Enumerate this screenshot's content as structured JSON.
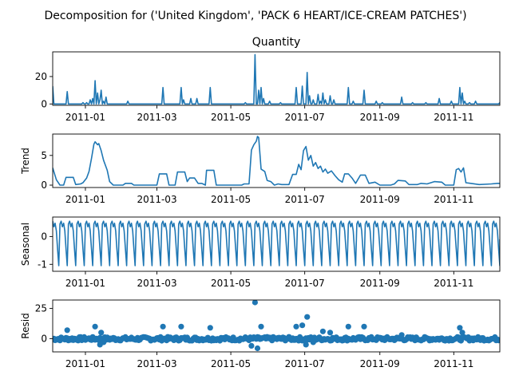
{
  "figure": {
    "suptitle": "Decomposition for ('United Kingdom', 'PACK 6 HEART/ICE-CREAM PATCHES')"
  },
  "chart_data": [
    {
      "type": "line",
      "title": "Quantity",
      "ylabel": "",
      "ylim": [
        -1,
        38
      ],
      "yticks": [
        0,
        20
      ],
      "xlim": [
        "2010-12-05",
        "2011-12-09"
      ],
      "xticks": [
        "2011-01",
        "2011-03",
        "2011-05",
        "2011-07",
        "2011-09",
        "2011-11"
      ],
      "baseline": 0,
      "spikes": [
        {
          "x": "2010-12-05",
          "y": 13
        },
        {
          "x": "2010-12-17",
          "y": 9
        },
        {
          "x": "2010-12-30",
          "y": 1
        },
        {
          "x": "2011-01-02",
          "y": 1
        },
        {
          "x": "2011-01-05",
          "y": 3
        },
        {
          "x": "2011-01-07",
          "y": 4
        },
        {
          "x": "2011-01-09",
          "y": 17
        },
        {
          "x": "2011-01-11",
          "y": 8
        },
        {
          "x": "2011-01-13",
          "y": 3
        },
        {
          "x": "2011-01-14",
          "y": 10
        },
        {
          "x": "2011-01-16",
          "y": 2
        },
        {
          "x": "2011-01-18",
          "y": 5
        },
        {
          "x": "2011-02-05",
          "y": 2
        },
        {
          "x": "2011-03-06",
          "y": 12
        },
        {
          "x": "2011-03-21",
          "y": 12
        },
        {
          "x": "2011-03-23",
          "y": 3
        },
        {
          "x": "2011-03-29",
          "y": 4
        },
        {
          "x": "2011-04-03",
          "y": 4
        },
        {
          "x": "2011-04-14",
          "y": 12
        },
        {
          "x": "2011-05-13",
          "y": 1
        },
        {
          "x": "2011-05-21",
          "y": 36
        },
        {
          "x": "2011-05-24",
          "y": 10
        },
        {
          "x": "2011-05-26",
          "y": 12
        },
        {
          "x": "2011-05-28",
          "y": 4
        },
        {
          "x": "2011-06-02",
          "y": 2
        },
        {
          "x": "2011-06-11",
          "y": 1
        },
        {
          "x": "2011-06-24",
          "y": 12
        },
        {
          "x": "2011-06-29",
          "y": 13
        },
        {
          "x": "2011-07-03",
          "y": 23
        },
        {
          "x": "2011-07-05",
          "y": 6
        },
        {
          "x": "2011-07-08",
          "y": 3
        },
        {
          "x": "2011-07-12",
          "y": 7
        },
        {
          "x": "2011-07-14",
          "y": 2
        },
        {
          "x": "2011-07-16",
          "y": 8
        },
        {
          "x": "2011-07-18",
          "y": 3
        },
        {
          "x": "2011-07-22",
          "y": 6
        },
        {
          "x": "2011-07-25",
          "y": 3
        },
        {
          "x": "2011-08-06",
          "y": 12
        },
        {
          "x": "2011-08-10",
          "y": 2
        },
        {
          "x": "2011-08-19",
          "y": 10
        },
        {
          "x": "2011-08-29",
          "y": 2
        },
        {
          "x": "2011-09-03",
          "y": 1
        },
        {
          "x": "2011-09-19",
          "y": 5
        },
        {
          "x": "2011-09-28",
          "y": 1
        },
        {
          "x": "2011-10-09",
          "y": 1
        },
        {
          "x": "2011-10-20",
          "y": 4
        },
        {
          "x": "2011-10-30",
          "y": 2
        },
        {
          "x": "2011-11-06",
          "y": 12
        },
        {
          "x": "2011-11-08",
          "y": 8
        },
        {
          "x": "2011-11-10",
          "y": 2
        },
        {
          "x": "2011-11-14",
          "y": 1
        },
        {
          "x": "2011-11-19",
          "y": 2
        },
        {
          "x": "2011-12-09",
          "y": 1
        }
      ]
    },
    {
      "type": "line",
      "title": "",
      "ylabel": "Trend",
      "ylim": [
        -0.4,
        8.6
      ],
      "yticks": [
        0,
        5
      ],
      "xlim": [
        "2010-12-05",
        "2011-12-09"
      ],
      "xticks": [
        "2011-01",
        "2011-03",
        "2011-05",
        "2011-07",
        "2011-09",
        "2011-11"
      ],
      "points": [
        {
          "x": "2010-12-05",
          "y": 2.9
        },
        {
          "x": "2010-12-08",
          "y": 0.9
        },
        {
          "x": "2010-12-11",
          "y": 0.0
        },
        {
          "x": "2010-12-14",
          "y": 0.0
        },
        {
          "x": "2010-12-16",
          "y": 1.3
        },
        {
          "x": "2010-12-22",
          "y": 1.3
        },
        {
          "x": "2010-12-24",
          "y": 0.1
        },
        {
          "x": "2010-12-28",
          "y": 0.2
        },
        {
          "x": "2010-12-30",
          "y": 0.4
        },
        {
          "x": "2011-01-02",
          "y": 1.2
        },
        {
          "x": "2011-01-04",
          "y": 2.3
        },
        {
          "x": "2011-01-06",
          "y": 4.5
        },
        {
          "x": "2011-01-08",
          "y": 6.9
        },
        {
          "x": "2011-01-09",
          "y": 7.3
        },
        {
          "x": "2011-01-11",
          "y": 6.8
        },
        {
          "x": "2011-01-12",
          "y": 7.0
        },
        {
          "x": "2011-01-14",
          "y": 5.8
        },
        {
          "x": "2011-01-16",
          "y": 4.2
        },
        {
          "x": "2011-01-19",
          "y": 2.5
        },
        {
          "x": "2011-01-21",
          "y": 0.6
        },
        {
          "x": "2011-01-24",
          "y": 0.0
        },
        {
          "x": "2011-02-01",
          "y": 0.0
        },
        {
          "x": "2011-02-03",
          "y": 0.3
        },
        {
          "x": "2011-02-08",
          "y": 0.3
        },
        {
          "x": "2011-02-10",
          "y": 0.0
        },
        {
          "x": "2011-03-01",
          "y": 0.0
        },
        {
          "x": "2011-03-03",
          "y": 1.9
        },
        {
          "x": "2011-03-09",
          "y": 1.9
        },
        {
          "x": "2011-03-11",
          "y": 0.0
        },
        {
          "x": "2011-03-16",
          "y": 0.0
        },
        {
          "x": "2011-03-18",
          "y": 2.2
        },
        {
          "x": "2011-03-24",
          "y": 2.2
        },
        {
          "x": "2011-03-26",
          "y": 0.6
        },
        {
          "x": "2011-03-28",
          "y": 1.2
        },
        {
          "x": "2011-04-01",
          "y": 1.2
        },
        {
          "x": "2011-04-04",
          "y": 0.3
        },
        {
          "x": "2011-04-07",
          "y": 0.3
        },
        {
          "x": "2011-04-10",
          "y": 0.0
        },
        {
          "x": "2011-04-11",
          "y": 2.5
        },
        {
          "x": "2011-04-17",
          "y": 2.5
        },
        {
          "x": "2011-04-19",
          "y": 0.0
        },
        {
          "x": "2011-05-10",
          "y": 0.0
        },
        {
          "x": "2011-05-12",
          "y": 0.2
        },
        {
          "x": "2011-05-16",
          "y": 0.2
        },
        {
          "x": "2011-05-18",
          "y": 5.9
        },
        {
          "x": "2011-05-20",
          "y": 6.8
        },
        {
          "x": "2011-05-22",
          "y": 7.4
        },
        {
          "x": "2011-05-23",
          "y": 8.2
        },
        {
          "x": "2011-05-24",
          "y": 8.0
        },
        {
          "x": "2011-05-26",
          "y": 2.7
        },
        {
          "x": "2011-05-29",
          "y": 2.3
        },
        {
          "x": "2011-05-31",
          "y": 0.8
        },
        {
          "x": "2011-06-03",
          "y": 0.6
        },
        {
          "x": "2011-06-06",
          "y": 0.0
        },
        {
          "x": "2011-06-09",
          "y": 0.2
        },
        {
          "x": "2011-06-12",
          "y": 0.1
        },
        {
          "x": "2011-06-18",
          "y": 0.1
        },
        {
          "x": "2011-06-21",
          "y": 1.8
        },
        {
          "x": "2011-06-24",
          "y": 1.8
        },
        {
          "x": "2011-06-26",
          "y": 3.5
        },
        {
          "x": "2011-06-28",
          "y": 2.6
        },
        {
          "x": "2011-06-30",
          "y": 5.8
        },
        {
          "x": "2011-07-02",
          "y": 6.5
        },
        {
          "x": "2011-07-04",
          "y": 4.2
        },
        {
          "x": "2011-07-06",
          "y": 5.0
        },
        {
          "x": "2011-07-08",
          "y": 3.2
        },
        {
          "x": "2011-07-10",
          "y": 3.8
        },
        {
          "x": "2011-07-12",
          "y": 2.8
        },
        {
          "x": "2011-07-14",
          "y": 3.2
        },
        {
          "x": "2011-07-16",
          "y": 2.2
        },
        {
          "x": "2011-07-18",
          "y": 2.7
        },
        {
          "x": "2011-07-20",
          "y": 2.0
        },
        {
          "x": "2011-07-23",
          "y": 2.4
        },
        {
          "x": "2011-07-26",
          "y": 1.6
        },
        {
          "x": "2011-07-29",
          "y": 0.9
        },
        {
          "x": "2011-08-01",
          "y": 0.5
        },
        {
          "x": "2011-08-03",
          "y": 1.9
        },
        {
          "x": "2011-08-06",
          "y": 1.9
        },
        {
          "x": "2011-08-09",
          "y": 1.2
        },
        {
          "x": "2011-08-12",
          "y": 0.3
        },
        {
          "x": "2011-08-16",
          "y": 1.7
        },
        {
          "x": "2011-08-20",
          "y": 1.7
        },
        {
          "x": "2011-08-23",
          "y": 0.3
        },
        {
          "x": "2011-08-28",
          "y": 0.5
        },
        {
          "x": "2011-09-01",
          "y": 0.0
        },
        {
          "x": "2011-09-10",
          "y": 0.0
        },
        {
          "x": "2011-09-13",
          "y": 0.2
        },
        {
          "x": "2011-09-16",
          "y": 0.8
        },
        {
          "x": "2011-09-22",
          "y": 0.7
        },
        {
          "x": "2011-09-25",
          "y": 0.1
        },
        {
          "x": "2011-10-02",
          "y": 0.1
        },
        {
          "x": "2011-10-05",
          "y": 0.3
        },
        {
          "x": "2011-10-10",
          "y": 0.2
        },
        {
          "x": "2011-10-16",
          "y": 0.6
        },
        {
          "x": "2011-10-22",
          "y": 0.5
        },
        {
          "x": "2011-10-25",
          "y": 0.0
        },
        {
          "x": "2011-11-01",
          "y": 0.0
        },
        {
          "x": "2011-11-03",
          "y": 2.6
        },
        {
          "x": "2011-11-05",
          "y": 2.8
        },
        {
          "x": "2011-11-07",
          "y": 2.2
        },
        {
          "x": "2011-11-09",
          "y": 2.9
        },
        {
          "x": "2011-11-11",
          "y": 0.4
        },
        {
          "x": "2011-11-15",
          "y": 0.3
        },
        {
          "x": "2011-11-22",
          "y": 0.1
        },
        {
          "x": "2011-12-02",
          "y": 0.2
        },
        {
          "x": "2011-12-07",
          "y": 0.3
        },
        {
          "x": "2011-12-09",
          "y": 0.3
        }
      ]
    },
    {
      "type": "line",
      "title": "",
      "ylabel": "Seasonal",
      "ylim": [
        -1.25,
        0.7
      ],
      "yticks": [
        -1,
        0
      ],
      "xlim": [
        "2010-12-05",
        "2011-12-09"
      ],
      "xticks": [
        "2011-01",
        "2011-03",
        "2011-05",
        "2011-07",
        "2011-09",
        "2011-11"
      ],
      "period_days": 7,
      "weekly_pattern": [
        0.55,
        0.35,
        0.48,
        0.2,
        -0.45,
        -1.05,
        0.45
      ],
      "points": []
    },
    {
      "type": "scatter",
      "title": "",
      "ylabel": "Resid",
      "ylim": [
        -11,
        32
      ],
      "yticks": [
        0,
        25
      ],
      "xlim": [
        "2010-12-05",
        "2011-12-09"
      ],
      "xticks": [
        "2011-01",
        "2011-03",
        "2011-05",
        "2011-07",
        "2011-09",
        "2011-11"
      ],
      "baseline": 0,
      "points": [
        {
          "x": "2010-12-17",
          "y": 7
        },
        {
          "x": "2011-01-09",
          "y": 10
        },
        {
          "x": "2011-01-13",
          "y": -5
        },
        {
          "x": "2011-01-14",
          "y": 5
        },
        {
          "x": "2011-01-16",
          "y": -3
        },
        {
          "x": "2011-03-06",
          "y": 10
        },
        {
          "x": "2011-03-21",
          "y": 10
        },
        {
          "x": "2011-04-14",
          "y": 9
        },
        {
          "x": "2011-05-18",
          "y": -6
        },
        {
          "x": "2011-05-21",
          "y": 30
        },
        {
          "x": "2011-05-23",
          "y": -8
        },
        {
          "x": "2011-05-26",
          "y": 10
        },
        {
          "x": "2011-06-24",
          "y": 10
        },
        {
          "x": "2011-06-29",
          "y": 11
        },
        {
          "x": "2011-07-02",
          "y": -5
        },
        {
          "x": "2011-07-03",
          "y": 18
        },
        {
          "x": "2011-07-08",
          "y": -3
        },
        {
          "x": "2011-07-16",
          "y": 6
        },
        {
          "x": "2011-07-22",
          "y": 5
        },
        {
          "x": "2011-08-06",
          "y": 10
        },
        {
          "x": "2011-08-19",
          "y": 10
        },
        {
          "x": "2011-09-19",
          "y": 3
        },
        {
          "x": "2011-11-06",
          "y": 9
        },
        {
          "x": "2011-11-08",
          "y": 5
        }
      ]
    }
  ]
}
